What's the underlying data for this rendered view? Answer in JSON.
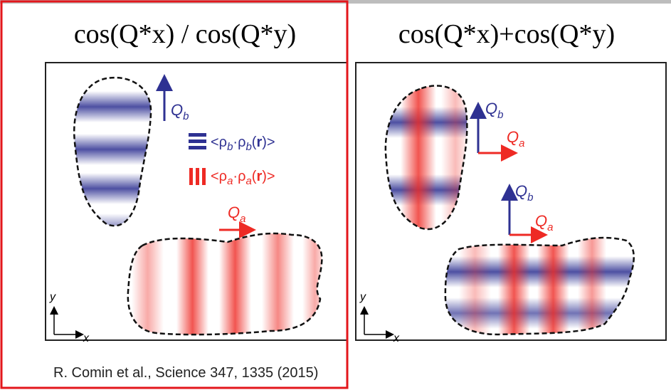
{
  "panels": [
    {
      "title": "cos(Q*x) / cos(Q*y)",
      "qb": [
        "Q",
        "b"
      ],
      "qa": [
        "Q",
        "a"
      ],
      "legend_b": [
        "<ρ",
        "b",
        "·ρ",
        "b",
        "(",
        "r",
        ")>"
      ],
      "legend_a": [
        "<ρ",
        "a",
        "·ρ",
        "a",
        "(",
        "r",
        ")>"
      ],
      "axis_y": "y",
      "axis_x": "x"
    },
    {
      "title": "cos(Q*x)+cos(Q*y)",
      "qb1": [
        "Q",
        "b"
      ],
      "qa1": [
        "Q",
        "a"
      ],
      "qb2": [
        "Q",
        "b"
      ],
      "qa2": [
        "Q",
        "a"
      ],
      "axis_y": "y",
      "axis_x": "x"
    }
  ],
  "citation": "R. Comin et al., Science 347, 1335 (2015)"
}
